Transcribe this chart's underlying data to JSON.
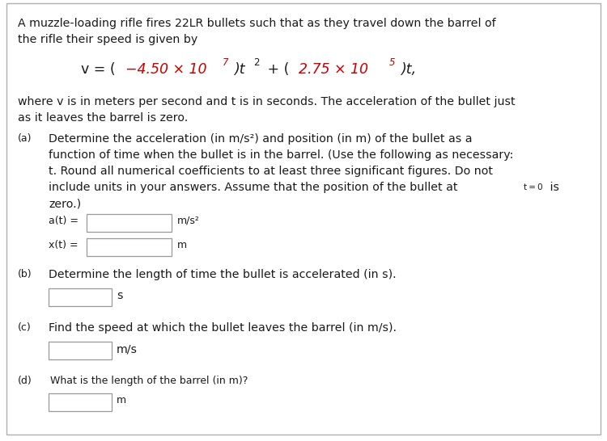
{
  "bg_color": "#ffffff",
  "border_color": "#b0b0b0",
  "text_color": "#1a1a1a",
  "red_color": "#cc0000",
  "box_edge_color": "#999999",
  "box_fill_color": "#ffffff",
  "intro_line1": "A muzzle-loading rifle fires 22LR bullets such that as they travel down the barrel of",
  "intro_line2": "the rifle their speed is given by",
  "where_line1": "where v is in meters per second and t is in seconds. The acceleration of the bullet just",
  "where_line2": "as it leaves the barrel is zero.",
  "part_a_label": "(a)",
  "part_a_line1": "Determine the acceleration (in m/s²) and position (in m) of the bullet as a",
  "part_a_line2": "function of time when the bullet is in the barrel. (Use the following as necessary:",
  "part_a_line3": "t. Round all numerical coefficients to at least three significant figures. Do not",
  "part_a_line4a": "include units in your answers. Assume that the position of the bullet at ",
  "part_a_line4b": "t = 0",
  "part_a_line4c": " is",
  "part_a_line5": "zero.)",
  "at_label": "a(t) =",
  "at_unit": "m/s²",
  "xt_label": "x(t) =",
  "xt_unit": "m",
  "part_b_label": "(b)",
  "part_b_text": "Determine the length of time the bullet is accelerated (in s).",
  "part_b_unit": "s",
  "part_c_label": "(c)",
  "part_c_text": "Find the speed at which the bullet leaves the barrel (in m/s).",
  "part_c_unit": "m/s",
  "part_d_label": "(d)",
  "part_d_text": "What is the length of the barrel (in m)?",
  "part_d_unit": "m",
  "fs_body": 10.2,
  "fs_label": 9.0,
  "fs_formula": 12.5,
  "fs_super": 8.5,
  "fs_tsub": 7.5
}
